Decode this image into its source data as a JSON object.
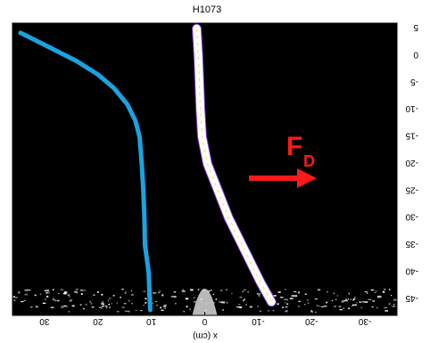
{
  "chart_data": {
    "type": "line",
    "title": "H1073",
    "xlabel": "x (cm)",
    "ylabel": "",
    "xlim": [
      36,
      -36
    ],
    "ylim": [
      6,
      -48
    ],
    "x_ticks": [
      30,
      20,
      10,
      0,
      -10,
      -20,
      -30
    ],
    "x_tick_labels": [
      "30",
      "20",
      "10",
      "0",
      "-10",
      "-20",
      "-30"
    ],
    "y_ticks": [
      5,
      0,
      -5,
      -10,
      -15,
      -20,
      -25,
      -30,
      -35,
      -40,
      -45
    ],
    "y_tick_labels": [
      "5",
      "0",
      "-5",
      "-10",
      "-15",
      "-20",
      "-25",
      "-30",
      "-35",
      "-40",
      "-45"
    ],
    "grid": false,
    "series": [
      {
        "color": "#1aa3e0",
        "x": [
          34.5,
          32,
          28,
          24,
          20,
          17,
          14.5,
          13,
          12.2,
          11.8,
          11.5,
          11.3,
          11.2,
          10.5,
          10.2
        ],
        "y": [
          4.2,
          3.0,
          1.0,
          -1.0,
          -3.5,
          -6.0,
          -9.0,
          -12.0,
          -15.0,
          -20.0,
          -25.0,
          -30.0,
          -35.0,
          -40.0,
          -47.0
        ]
      },
      {
        "color": "#ffffff",
        "x": [
          1.5,
          1.2,
          1.0,
          0.8,
          0.5,
          -0.5,
          -2.5,
          -4.5,
          -6.5,
          -8.5,
          -10.5,
          -12.5
        ],
        "y": [
          5.0,
          0.0,
          -5.0,
          -10.0,
          -15.0,
          -20.0,
          -25.0,
          -30.0,
          -34.0,
          -38.0,
          -42.0,
          -45.5
        ]
      }
    ],
    "annotations": [
      {
        "text": "F",
        "subscript": "D",
        "color": "#ff1a1a"
      }
    ]
  }
}
